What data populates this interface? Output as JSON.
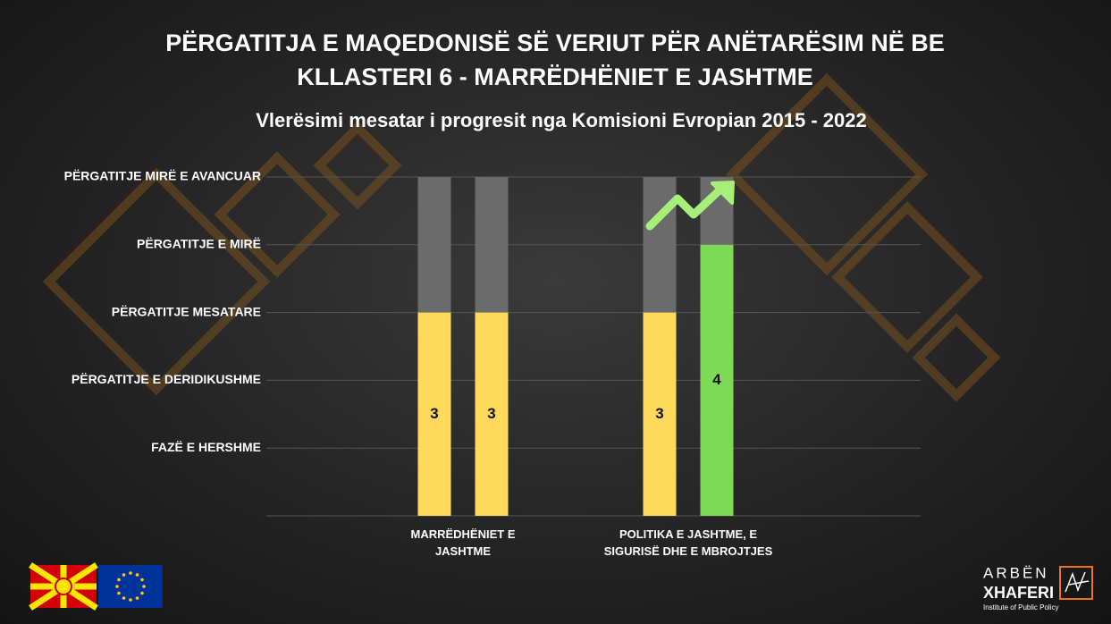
{
  "chart_data": {
    "type": "bar",
    "title": [
      "PËRGATITJA E MAQEDONISË SË VERIUT PËR ANËTARËSIM NË BE",
      "KLLASTERI 6 - MARRËDHËNIET E JASHTME"
    ],
    "subtitle": "Vlerësimi mesatar i progresit nga Komisioni Evropian 2015 - 2022",
    "categories": [
      "MARRËDHËNIET E JASHTME",
      "POLITIKA E JASHTME, E SIGURISË DHE E MBROJTJES"
    ],
    "series": [
      {
        "colors": [
          "#fdd95c",
          "#fdd95c"
        ],
        "values": [
          3,
          3
        ]
      },
      {
        "colors": [
          "#fdd95c",
          "#7ed957"
        ],
        "values": [
          3,
          4
        ]
      }
    ],
    "background_color": "#6b6b6b",
    "ylim": [
      0,
      5
    ],
    "yticks": [
      {
        "value": 1,
        "label": "FAZË E HERSHME"
      },
      {
        "value": 2,
        "label": "PËRGATITJE E DERIDIKUSHME"
      },
      {
        "value": 3,
        "label": "PËRGATITJE MESATARE"
      },
      {
        "value": 4,
        "label": "PËRGATITJE E MIRË"
      },
      {
        "value": 5,
        "label": "PËRGATITJE MIRË E AVANCUAR"
      }
    ],
    "grid": true
  },
  "logo": {
    "first": "ARBËN",
    "last": "XHAFERI",
    "tagline": "Institute of Public Policy"
  }
}
